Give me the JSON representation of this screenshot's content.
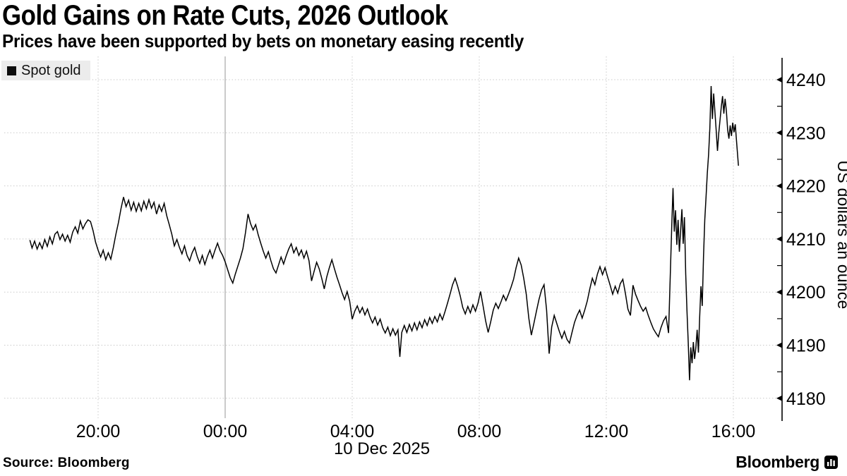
{
  "header": {
    "title": "Gold Gains on Rate Cuts, 2026 Outlook",
    "subtitle": "Prices have been supported by bets on monetary easing recently"
  },
  "legend": {
    "label": "Spot gold",
    "swatch_color": "#0d0d0d"
  },
  "footer": {
    "source": "Source: Bloomberg",
    "brand": "Bloomberg",
    "brand_icon": "bloomberg-terminal-icon"
  },
  "chart_data": {
    "type": "line",
    "title": "Gold Gains on Rate Cuts, 2026 Outlook",
    "series_name": "Spot gold",
    "line_color": "#000000",
    "x_axis": {
      "description": "time of day, hours offset from 17:00 on 9 Dec 2025",
      "date_label": "10 Dec 2025",
      "range_hours": [
        0.1,
        24.55
      ],
      "ticks": [
        {
          "t": 3,
          "label": "20:00",
          "solid": false
        },
        {
          "t": 7,
          "label": "00:00",
          "solid": true
        },
        {
          "t": 11,
          "label": "04:00",
          "solid": false
        },
        {
          "t": 15,
          "label": "08:00",
          "solid": false
        },
        {
          "t": 19,
          "label": "12:00",
          "solid": false
        },
        {
          "t": 23,
          "label": "16:00",
          "solid": false
        }
      ]
    },
    "y_axis": {
      "title": "US dollars an ounce",
      "ticks": [
        4180,
        4190,
        4200,
        4210,
        4220,
        4230,
        4240
      ],
      "minor_ticks": [
        4185,
        4195,
        4205,
        4215,
        4225,
        4235
      ],
      "range": [
        4176,
        4244.5
      ]
    },
    "grid": {
      "dotted_color": "#c9c9c9",
      "solid_midnight_color": "#a6a6a6"
    },
    "points": [
      [
        0.85,
        4209.8
      ],
      [
        0.92,
        4208.3
      ],
      [
        1.0,
        4209.6
      ],
      [
        1.08,
        4208.1
      ],
      [
        1.16,
        4209.3
      ],
      [
        1.24,
        4208.2
      ],
      [
        1.32,
        4209.9
      ],
      [
        1.4,
        4208.6
      ],
      [
        1.48,
        4210.4
      ],
      [
        1.56,
        4209.1
      ],
      [
        1.64,
        4210.9
      ],
      [
        1.72,
        4211.4
      ],
      [
        1.8,
        4209.9
      ],
      [
        1.88,
        4210.9
      ],
      [
        1.96,
        4209.6
      ],
      [
        2.04,
        4210.7
      ],
      [
        2.12,
        4209.4
      ],
      [
        2.2,
        4211.3
      ],
      [
        2.28,
        4212.3
      ],
      [
        2.36,
        4211.1
      ],
      [
        2.44,
        4213.4
      ],
      [
        2.52,
        4211.9
      ],
      [
        2.6,
        4212.9
      ],
      [
        2.68,
        4213.6
      ],
      [
        2.76,
        4213.3
      ],
      [
        2.84,
        4211.6
      ],
      [
        2.92,
        4209.4
      ],
      [
        3.0,
        4207.9
      ],
      [
        3.08,
        4206.6
      ],
      [
        3.16,
        4207.9
      ],
      [
        3.24,
        4206.1
      ],
      [
        3.32,
        4207.4
      ],
      [
        3.4,
        4206.2
      ],
      [
        3.48,
        4208.4
      ],
      [
        3.56,
        4210.9
      ],
      [
        3.64,
        4213.1
      ],
      [
        3.72,
        4215.7
      ],
      [
        3.8,
        4217.9
      ],
      [
        3.88,
        4216.1
      ],
      [
        3.96,
        4217.3
      ],
      [
        4.04,
        4215.4
      ],
      [
        4.12,
        4216.9
      ],
      [
        4.2,
        4215.2
      ],
      [
        4.28,
        4216.7
      ],
      [
        4.36,
        4215.3
      ],
      [
        4.44,
        4217.1
      ],
      [
        4.52,
        4215.7
      ],
      [
        4.6,
        4217.4
      ],
      [
        4.68,
        4215.8
      ],
      [
        4.76,
        4216.9
      ],
      [
        4.84,
        4214.7
      ],
      [
        4.92,
        4216.4
      ],
      [
        5.0,
        4215.2
      ],
      [
        5.08,
        4216.7
      ],
      [
        5.16,
        4214.4
      ],
      [
        5.24,
        4212.7
      ],
      [
        5.32,
        4210.9
      ],
      [
        5.4,
        4208.7
      ],
      [
        5.48,
        4209.9
      ],
      [
        5.56,
        4208.4
      ],
      [
        5.64,
        4207.2
      ],
      [
        5.72,
        4208.7
      ],
      [
        5.8,
        4206.9
      ],
      [
        5.88,
        4205.9
      ],
      [
        5.96,
        4207.4
      ],
      [
        6.04,
        4208.4
      ],
      [
        6.12,
        4206.7
      ],
      [
        6.2,
        4205.4
      ],
      [
        6.28,
        4206.9
      ],
      [
        6.36,
        4205.2
      ],
      [
        6.44,
        4206.7
      ],
      [
        6.52,
        4207.9
      ],
      [
        6.6,
        4206.4
      ],
      [
        6.68,
        4207.9
      ],
      [
        6.76,
        4209.2
      ],
      [
        6.84,
        4207.8
      ],
      [
        6.92,
        4206.9
      ],
      [
        7.0,
        4205.7
      ],
      [
        7.08,
        4204.2
      ],
      [
        7.16,
        4202.7
      ],
      [
        7.24,
        4201.7
      ],
      [
        7.32,
        4203.4
      ],
      [
        7.4,
        4204.9
      ],
      [
        7.48,
        4206.4
      ],
      [
        7.56,
        4208.2
      ],
      [
        7.64,
        4211.2
      ],
      [
        7.72,
        4214.7
      ],
      [
        7.8,
        4212.9
      ],
      [
        7.88,
        4211.7
      ],
      [
        7.96,
        4212.7
      ],
      [
        8.04,
        4210.8
      ],
      [
        8.12,
        4209.2
      ],
      [
        8.2,
        4207.7
      ],
      [
        8.28,
        4206.4
      ],
      [
        8.36,
        4207.6
      ],
      [
        8.44,
        4205.9
      ],
      [
        8.52,
        4204.4
      ],
      [
        8.6,
        4203.6
      ],
      [
        8.68,
        4205.1
      ],
      [
        8.76,
        4206.6
      ],
      [
        8.84,
        4205.3
      ],
      [
        8.92,
        4206.8
      ],
      [
        9.0,
        4208.1
      ],
      [
        9.08,
        4209.1
      ],
      [
        9.16,
        4207.4
      ],
      [
        9.24,
        4208.4
      ],
      [
        9.32,
        4206.9
      ],
      [
        9.4,
        4207.9
      ],
      [
        9.48,
        4206.4
      ],
      [
        9.56,
        4207.7
      ],
      [
        9.64,
        4205.9
      ],
      [
        9.72,
        4202.1
      ],
      [
        9.8,
        4203.9
      ],
      [
        9.88,
        4205.6
      ],
      [
        9.96,
        4204.4
      ],
      [
        10.04,
        4202.6
      ],
      [
        10.12,
        4200.6
      ],
      [
        10.2,
        4202.9
      ],
      [
        10.28,
        4204.6
      ],
      [
        10.36,
        4206.1
      ],
      [
        10.44,
        4204.4
      ],
      [
        10.52,
        4202.8
      ],
      [
        10.6,
        4201.4
      ],
      [
        10.68,
        4199.9
      ],
      [
        10.76,
        4198.6
      ],
      [
        10.84,
        4200.1
      ],
      [
        10.92,
        4198.3
      ],
      [
        11.0,
        4194.9
      ],
      [
        11.08,
        4196.4
      ],
      [
        11.16,
        4197.4
      ],
      [
        11.24,
        4196.1
      ],
      [
        11.32,
        4197.1
      ],
      [
        11.4,
        4195.7
      ],
      [
        11.48,
        4196.8
      ],
      [
        11.56,
        4195.3
      ],
      [
        11.64,
        4194.2
      ],
      [
        11.72,
        4195.3
      ],
      [
        11.8,
        4193.8
      ],
      [
        11.88,
        4194.9
      ],
      [
        11.96,
        4193.3
      ],
      [
        12.04,
        4192.3
      ],
      [
        12.12,
        4193.4
      ],
      [
        12.2,
        4191.8
      ],
      [
        12.28,
        4193.1
      ],
      [
        12.36,
        4191.9
      ],
      [
        12.44,
        4192.9
      ],
      [
        12.5,
        4187.8
      ],
      [
        12.56,
        4192.4
      ],
      [
        12.64,
        4193.7
      ],
      [
        12.72,
        4192.4
      ],
      [
        12.8,
        4193.9
      ],
      [
        12.88,
        4192.7
      ],
      [
        12.96,
        4194.2
      ],
      [
        13.04,
        4192.9
      ],
      [
        13.12,
        4194.4
      ],
      [
        13.2,
        4193.3
      ],
      [
        13.28,
        4194.8
      ],
      [
        13.36,
        4193.7
      ],
      [
        13.44,
        4195.2
      ],
      [
        13.52,
        4194.1
      ],
      [
        13.6,
        4195.4
      ],
      [
        13.68,
        4194.4
      ],
      [
        13.76,
        4195.9
      ],
      [
        13.84,
        4194.8
      ],
      [
        13.92,
        4196.3
      ],
      [
        14.0,
        4197.9
      ],
      [
        14.08,
        4199.6
      ],
      [
        14.16,
        4201.4
      ],
      [
        14.24,
        4202.6
      ],
      [
        14.32,
        4201.1
      ],
      [
        14.4,
        4199.3
      ],
      [
        14.48,
        4197.1
      ],
      [
        14.56,
        4195.9
      ],
      [
        14.64,
        4197.3
      ],
      [
        14.72,
        4196.1
      ],
      [
        14.8,
        4197.6
      ],
      [
        14.88,
        4196.4
      ],
      [
        14.96,
        4197.9
      ],
      [
        15.04,
        4200.1
      ],
      [
        15.12,
        4197.4
      ],
      [
        15.2,
        4194.6
      ],
      [
        15.28,
        4192.4
      ],
      [
        15.36,
        4194.4
      ],
      [
        15.44,
        4196.6
      ],
      [
        15.52,
        4197.9
      ],
      [
        15.6,
        4196.9
      ],
      [
        15.68,
        4198.1
      ],
      [
        15.76,
        4199.4
      ],
      [
        15.84,
        4198.4
      ],
      [
        15.92,
        4199.6
      ],
      [
        16.0,
        4200.9
      ],
      [
        16.08,
        4202.4
      ],
      [
        16.16,
        4204.6
      ],
      [
        16.24,
        4206.4
      ],
      [
        16.32,
        4205.1
      ],
      [
        16.4,
        4202.6
      ],
      [
        16.48,
        4199.6
      ],
      [
        16.56,
        4195.1
      ],
      [
        16.64,
        4191.9
      ],
      [
        16.72,
        4194.1
      ],
      [
        16.8,
        4196.4
      ],
      [
        16.88,
        4198.6
      ],
      [
        16.96,
        4200.4
      ],
      [
        17.04,
        4201.4
      ],
      [
        17.12,
        4196.6
      ],
      [
        17.2,
        4188.4
      ],
      [
        17.28,
        4193.4
      ],
      [
        17.36,
        4195.6
      ],
      [
        17.44,
        4194.1
      ],
      [
        17.52,
        4192.6
      ],
      [
        17.6,
        4191.3
      ],
      [
        17.68,
        4192.6
      ],
      [
        17.76,
        4191.1
      ],
      [
        17.84,
        4190.4
      ],
      [
        17.92,
        4192.4
      ],
      [
        18.0,
        4194.3
      ],
      [
        18.08,
        4195.6
      ],
      [
        18.16,
        4196.6
      ],
      [
        18.24,
        4195.1
      ],
      [
        18.32,
        4196.6
      ],
      [
        18.4,
        4198.3
      ],
      [
        18.48,
        4200.6
      ],
      [
        18.56,
        4202.6
      ],
      [
        18.64,
        4201.4
      ],
      [
        18.72,
        4203.4
      ],
      [
        18.8,
        4204.8
      ],
      [
        18.88,
        4203.3
      ],
      [
        18.96,
        4204.6
      ],
      [
        19.04,
        4202.9
      ],
      [
        19.12,
        4201.3
      ],
      [
        19.2,
        4199.6
      ],
      [
        19.28,
        4201.1
      ],
      [
        19.36,
        4199.8
      ],
      [
        19.44,
        4201.6
      ],
      [
        19.52,
        4202.4
      ],
      [
        19.6,
        4199.8
      ],
      [
        19.68,
        4196.8
      ],
      [
        19.76,
        4195.6
      ],
      [
        19.84,
        4201.3
      ],
      [
        19.92,
        4199.6
      ],
      [
        20.0,
        4198.4
      ],
      [
        20.08,
        4197.3
      ],
      [
        20.16,
        4196.4
      ],
      [
        20.24,
        4197.1
      ],
      [
        20.32,
        4195.6
      ],
      [
        20.4,
        4194.3
      ],
      [
        20.48,
        4193.1
      ],
      [
        20.56,
        4192.3
      ],
      [
        20.64,
        4191.6
      ],
      [
        20.72,
        4193.3
      ],
      [
        20.8,
        4194.6
      ],
      [
        20.88,
        4195.4
      ],
      [
        20.96,
        4192.3
      ],
      [
        21.02,
        4204.4
      ],
      [
        21.06,
        4212.4
      ],
      [
        21.1,
        4219.6
      ],
      [
        21.14,
        4211.4
      ],
      [
        21.18,
        4215.4
      ],
      [
        21.22,
        4208.9
      ],
      [
        21.26,
        4213.6
      ],
      [
        21.3,
        4207.6
      ],
      [
        21.34,
        4211.6
      ],
      [
        21.38,
        4215.6
      ],
      [
        21.42,
        4209.1
      ],
      [
        21.46,
        4214.1
      ],
      [
        21.5,
        4203.4
      ],
      [
        21.54,
        4196.4
      ],
      [
        21.58,
        4190.4
      ],
      [
        21.62,
        4183.4
      ],
      [
        21.66,
        4189.6
      ],
      [
        21.7,
        4186.6
      ],
      [
        21.74,
        4190.6
      ],
      [
        21.78,
        4187.4
      ],
      [
        21.82,
        4189.6
      ],
      [
        21.86,
        4192.9
      ],
      [
        21.9,
        4188.6
      ],
      [
        21.94,
        4195.4
      ],
      [
        21.98,
        4201.1
      ],
      [
        22.02,
        4197.4
      ],
      [
        22.06,
        4206.6
      ],
      [
        22.1,
        4213.6
      ],
      [
        22.14,
        4217.9
      ],
      [
        22.18,
        4222.4
      ],
      [
        22.22,
        4225.9
      ],
      [
        22.26,
        4230.9
      ],
      [
        22.3,
        4238.8
      ],
      [
        22.34,
        4232.6
      ],
      [
        22.38,
        4237.4
      ],
      [
        22.42,
        4233.9
      ],
      [
        22.46,
        4230.4
      ],
      [
        22.5,
        4226.6
      ],
      [
        22.54,
        4229.9
      ],
      [
        22.58,
        4232.4
      ],
      [
        22.62,
        4234.9
      ],
      [
        22.66,
        4236.9
      ],
      [
        22.7,
        4233.6
      ],
      [
        22.74,
        4236.4
      ],
      [
        22.78,
        4234.1
      ],
      [
        22.82,
        4230.6
      ],
      [
        22.86,
        4228.9
      ],
      [
        22.9,
        4231.4
      ],
      [
        22.94,
        4229.4
      ],
      [
        22.98,
        4231.9
      ],
      [
        23.02,
        4230.1
      ],
      [
        23.06,
        4231.6
      ],
      [
        23.1,
        4228.4
      ],
      [
        23.16,
        4223.8
      ]
    ]
  }
}
